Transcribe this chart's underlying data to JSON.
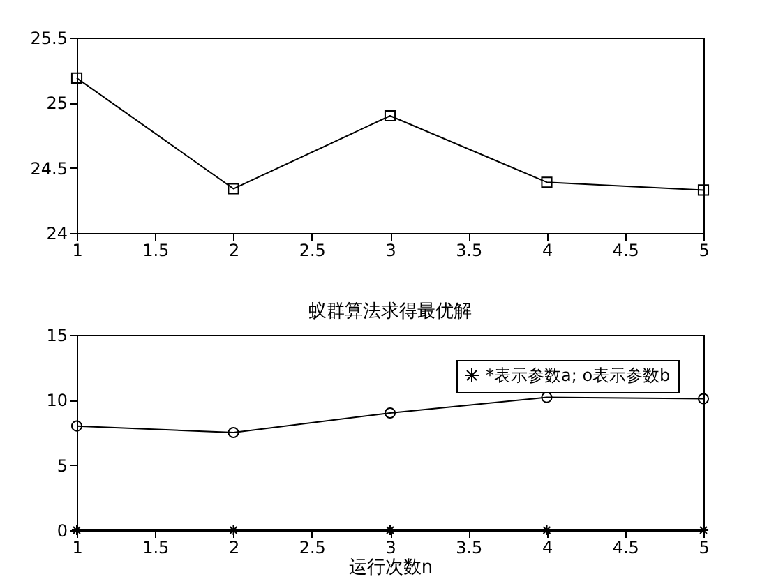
{
  "chart_data": [
    {
      "type": "line",
      "x": [
        1,
        2,
        3,
        4,
        5
      ],
      "xlim": [
        1,
        5
      ],
      "xticks": [
        1,
        1.5,
        2,
        2.5,
        3,
        3.5,
        4,
        4.5,
        5
      ],
      "ylim": [
        24,
        25.5
      ],
      "yticks": [
        24,
        24.5,
        25,
        25.5
      ],
      "grid": false,
      "line_style": "solid",
      "series": [
        {
          "color": "#000000",
          "marker": "square",
          "values": [
            25.19,
            24.34,
            24.9,
            24.39,
            24.33
          ]
        }
      ]
    },
    {
      "type": "line",
      "title": "蚁群算法求得最优解",
      "xlabel": "运行次数n",
      "x": [
        1,
        2,
        3,
        4,
        5
      ],
      "xlim": [
        1,
        5
      ],
      "xticks": [
        1,
        1.5,
        2,
        2.5,
        3,
        3.5,
        4,
        4.5,
        5
      ],
      "ylim": [
        0,
        15
      ],
      "yticks": [
        0,
        5,
        10,
        15
      ],
      "grid": false,
      "legend": "top right",
      "line_style": "solid",
      "series": [
        {
          "name": "*表示参数a; o表示参数b",
          "color": "#000000",
          "marker": "cross",
          "values": [
            0,
            0,
            0,
            0,
            0
          ]
        },
        {
          "color": "#000000",
          "marker": "circle",
          "values": [
            8,
            7.5,
            9,
            10.2,
            10.1
          ]
        }
      ]
    }
  ]
}
